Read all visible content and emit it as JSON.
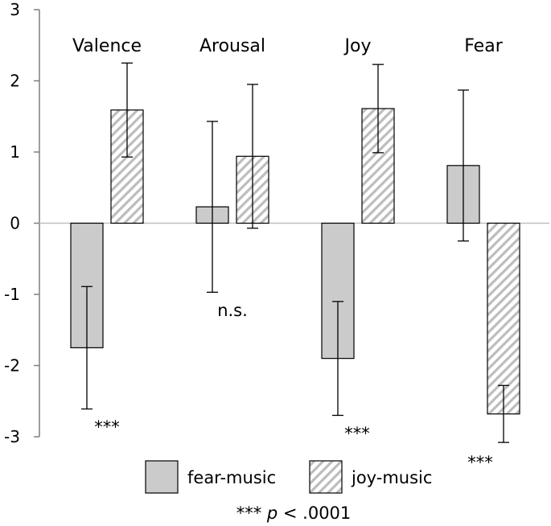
{
  "chart_data": {
    "type": "bar",
    "categories": [
      "Valence",
      "Arousal",
      "Joy",
      "Fear"
    ],
    "series": [
      {
        "name": "fear-music",
        "values": [
          -1.75,
          0.23,
          -1.9,
          0.81
        ],
        "error": [
          0.86,
          1.2,
          0.8,
          1.06
        ]
      },
      {
        "name": "joy-music",
        "values": [
          1.59,
          0.94,
          1.61,
          -2.68
        ],
        "error": [
          0.66,
          1.01,
          0.62,
          0.4
        ]
      }
    ],
    "ylim": [
      -3,
      3
    ],
    "yticks": [
      3,
      2,
      1,
      0,
      -1,
      -2,
      -3
    ],
    "annotations": [
      "***",
      "n.s.",
      "***",
      "***"
    ],
    "legend_position": "bottom",
    "footnote": {
      "stars": "***",
      "p": "p",
      "rest": " < .0001"
    },
    "colors": {
      "fear_music": "#cbcbcb",
      "joy_music_hatch": "#bdbdbd",
      "axis": "#7f7f7f",
      "zero_line": "#bfbfbf"
    }
  }
}
